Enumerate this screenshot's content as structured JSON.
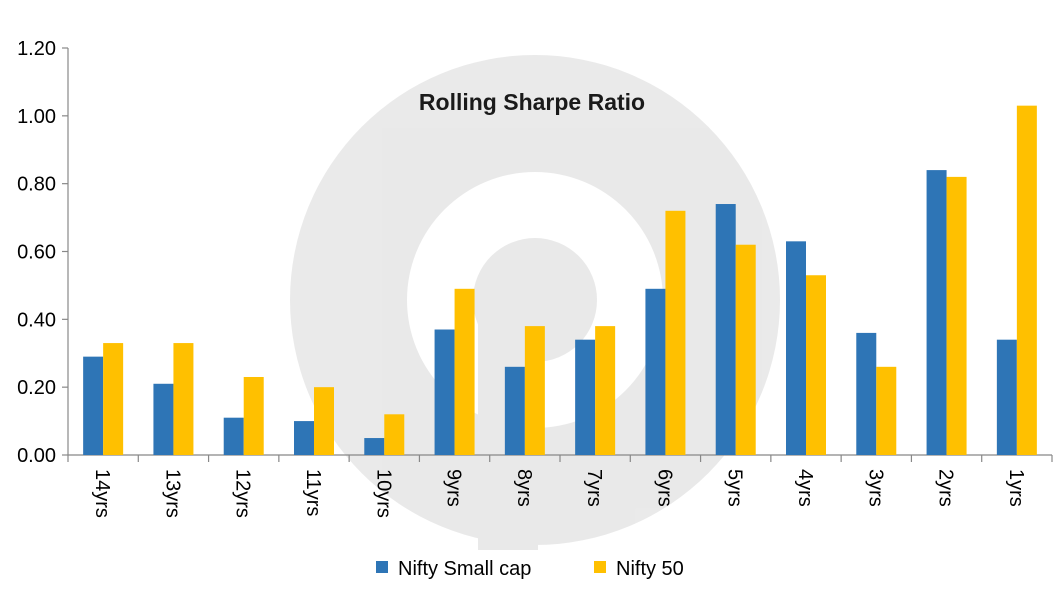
{
  "chart_data": {
    "type": "bar",
    "title": "Rolling Sharpe Ratio",
    "xlabel": "",
    "ylabel": "",
    "categories": [
      "14yrs",
      "13yrs",
      "12yrs",
      "11yrs",
      "10yrs",
      "9yrs",
      "8yrs",
      "7yrs",
      "6yrs",
      "5yrs",
      "4yrs",
      "3yrs",
      "2yrs",
      "1yrs"
    ],
    "series": [
      {
        "name": "Nifty Small cap",
        "color": "#2E75B6",
        "values": [
          0.29,
          0.21,
          0.11,
          0.1,
          0.05,
          0.37,
          0.26,
          0.34,
          0.49,
          0.74,
          0.63,
          0.36,
          0.84,
          0.34
        ]
      },
      {
        "name": "Nifty 50",
        "color": "#FFC000",
        "values": [
          0.33,
          0.33,
          0.23,
          0.2,
          0.12,
          0.49,
          0.38,
          0.38,
          0.72,
          0.62,
          0.53,
          0.26,
          0.82,
          1.03
        ]
      }
    ],
    "ylim": [
      0,
      1.2
    ],
    "yticks": [
      "0.00",
      "0.20",
      "0.40",
      "0.60",
      "0.80",
      "1.00",
      "1.20"
    ],
    "grid": false,
    "legend_position": "bottom",
    "watermark": "p-logo-watermark"
  }
}
